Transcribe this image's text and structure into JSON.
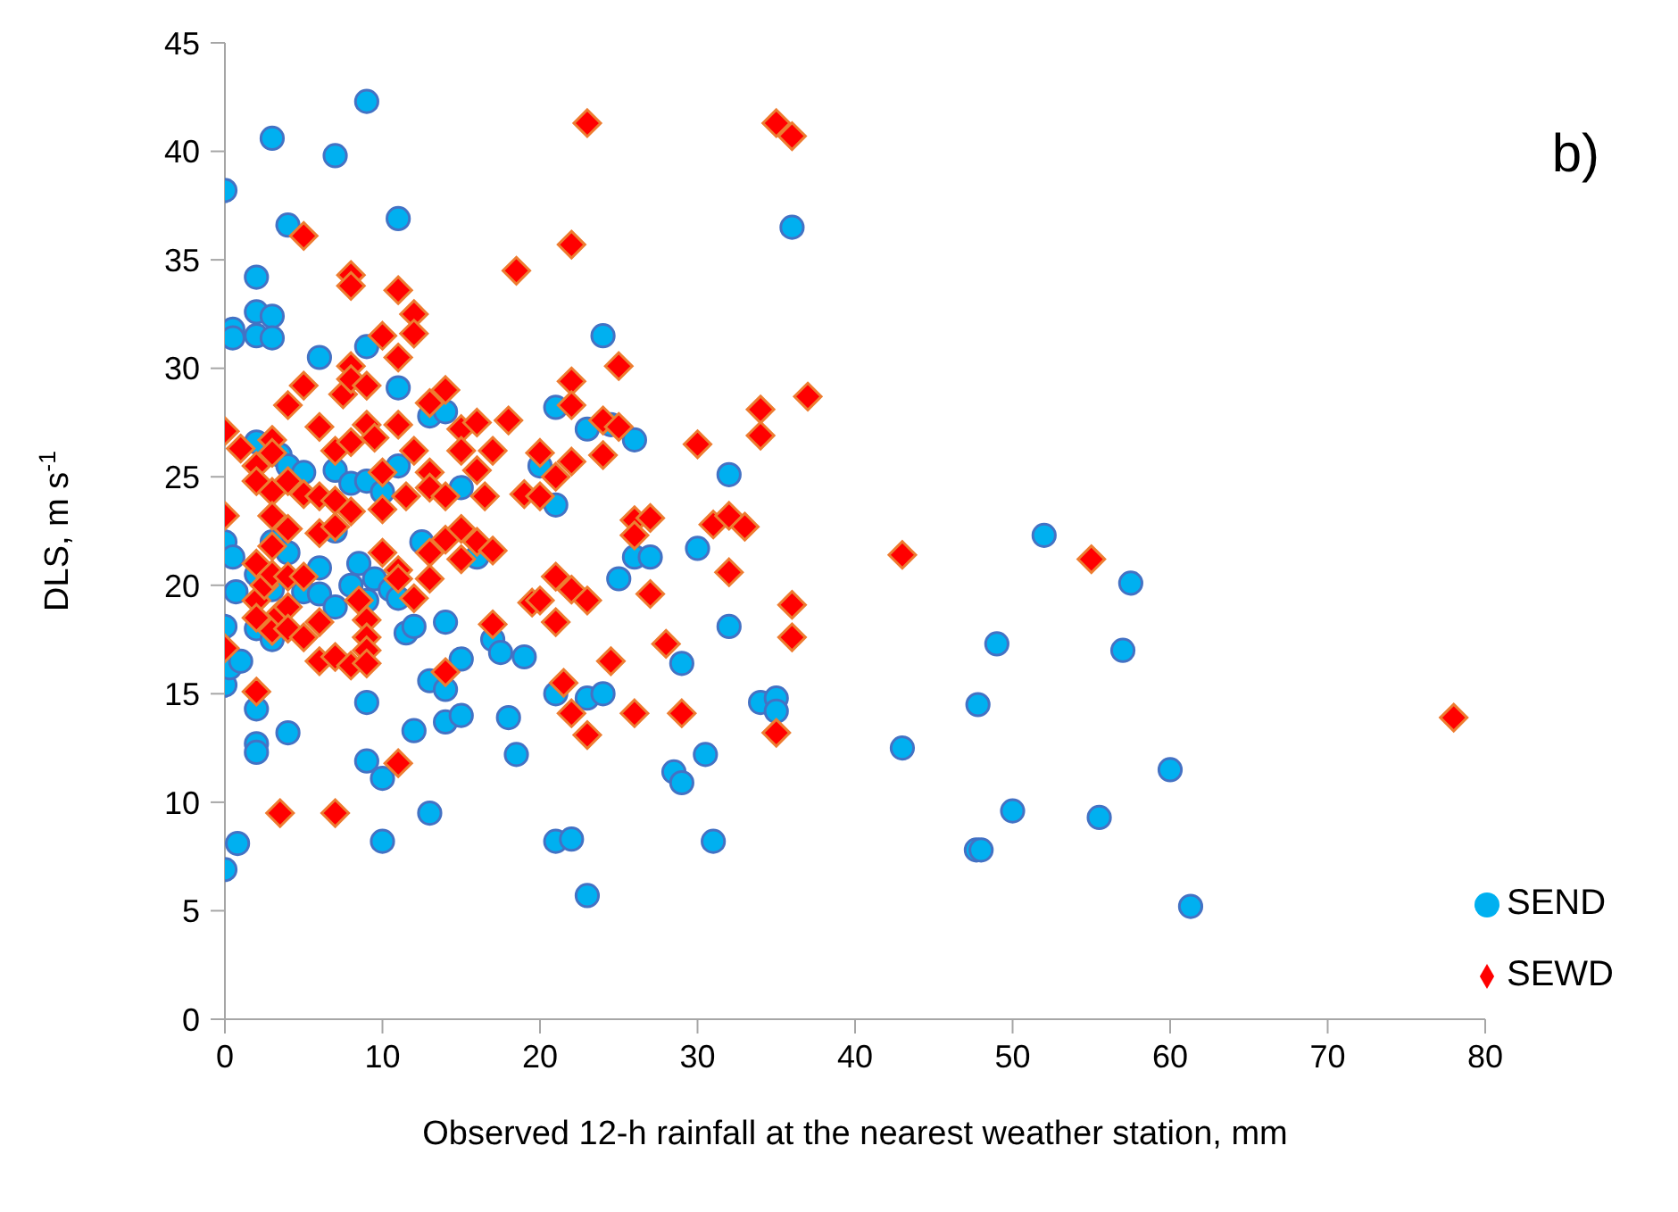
{
  "chart_data": {
    "type": "scatter",
    "xlabel": "Observed 12-h rainfall at the nearest weather station, mm",
    "ylabel": "DLS, m s$^{-1}$",
    "annotations": [
      "b)"
    ],
    "xlim": [
      0,
      80
    ],
    "xticks": [
      0,
      10,
      20,
      30,
      40,
      50,
      60,
      70,
      80
    ],
    "ylim": [
      0,
      45
    ],
    "yticks": [
      0,
      5,
      10,
      15,
      20,
      25,
      30,
      35,
      40,
      45
    ],
    "grid": false,
    "legend": "bottom right",
    "series": [
      {
        "name": "SEND",
        "color": "#00b0f0",
        "marker": "circle",
        "x": [
          0,
          0,
          0,
          0,
          0,
          0.3,
          0.5,
          0.5,
          0.5,
          0.7,
          0.8,
          1,
          2,
          2,
          2,
          2,
          2,
          2,
          2,
          2,
          2,
          3,
          3,
          3,
          3,
          3,
          3,
          3.5,
          4,
          4,
          4,
          4,
          5,
          5,
          6,
          6,
          6,
          7,
          7,
          7,
          7,
          8,
          8,
          8.5,
          9,
          9,
          9,
          9,
          9,
          9,
          9.5,
          10,
          10,
          10,
          10.5,
          11,
          11,
          11,
          11,
          11.5,
          12,
          12,
          12.5,
          13,
          13,
          13,
          14,
          14,
          14,
          14,
          15,
          15,
          15,
          16,
          17,
          17.5,
          18,
          18.5,
          19,
          20,
          21,
          21,
          21,
          21,
          22,
          23,
          23,
          23,
          24,
          24,
          24.5,
          25,
          26,
          26,
          27,
          28.5,
          29,
          29,
          30,
          30.5,
          31,
          32,
          32,
          34,
          35,
          35,
          36,
          43,
          47.7,
          48,
          47.8,
          49,
          50,
          52,
          55.5,
          57,
          57.5,
          60,
          61.3
        ],
        "values": [
          38.2,
          18.1,
          15.4,
          6.9,
          22,
          16.2,
          31.8,
          31.4,
          21.3,
          19.7,
          8.1,
          16.5,
          34.2,
          32.6,
          31.5,
          26.6,
          14.3,
          12.7,
          12.3,
          20.5,
          18,
          40.6,
          32.4,
          31.4,
          22,
          19.8,
          17.5,
          26,
          36.6,
          25.5,
          21.5,
          13.2,
          19.7,
          25.2,
          30.5,
          20.8,
          19.6,
          39.8,
          25.3,
          22.5,
          19,
          24.7,
          20,
          21,
          42.3,
          31,
          19.3,
          14.6,
          11.9,
          24.8,
          20.3,
          11.1,
          8.2,
          24.3,
          19.8,
          36.9,
          29.1,
          25.5,
          19.4,
          17.8,
          18.1,
          13.3,
          22,
          27.8,
          15.6,
          9.5,
          28,
          18.3,
          13.7,
          15.2,
          24.5,
          14,
          16.6,
          21.3,
          17.5,
          16.9,
          13.9,
          12.2,
          16.7,
          25.5,
          28.2,
          23.7,
          15,
          8.2,
          8.3,
          27.2,
          14.8,
          5.7,
          31.5,
          15,
          27.4,
          20.3,
          26.7,
          21.3,
          21.3,
          11.4,
          16.4,
          10.9,
          21.7,
          12.2,
          8.2,
          25.1,
          18.1,
          14.6,
          14.8,
          14.2,
          36.5,
          12.5,
          7.8,
          7.8,
          14.5,
          17.3,
          9.6,
          22.3,
          9.3,
          17,
          20.1,
          11.5,
          5.2
        ]
      },
      {
        "name": "SEWD",
        "color": "#ff0000",
        "marker": "diamond",
        "x": [
          0,
          0,
          0,
          1,
          2,
          2,
          2,
          2,
          2,
          2,
          2.5,
          3,
          3,
          3,
          3,
          3,
          3,
          3,
          3.5,
          3.5,
          4,
          4,
          4,
          4,
          4,
          4,
          5,
          5,
          5,
          5,
          5,
          6,
          6,
          6,
          6,
          6,
          7,
          7,
          7,
          7,
          7,
          7.5,
          8,
          8,
          8,
          8,
          8,
          8,
          8,
          8.5,
          9,
          9,
          9,
          9,
          9,
          9,
          9.5,
          10,
          10,
          10,
          10,
          11,
          11,
          11,
          11,
          11,
          11,
          11.5,
          12,
          12,
          12,
          12,
          13,
          13,
          13,
          13,
          13,
          14,
          14,
          14,
          14,
          15,
          15,
          15,
          15,
          16,
          16,
          16,
          16.5,
          17,
          17,
          17,
          18,
          18.5,
          19,
          19.5,
          20,
          20,
          20,
          21,
          21,
          21,
          21.5,
          22,
          22,
          22,
          22,
          22,
          22,
          23,
          23,
          23,
          24,
          24,
          24.5,
          25,
          25,
          26,
          26,
          26,
          27,
          27,
          28,
          29,
          30,
          31,
          32,
          32,
          33,
          34,
          34,
          35,
          35,
          36,
          36,
          36,
          37,
          43,
          55,
          78
        ],
        "values": [
          27.1,
          23.2,
          17.1,
          26.3,
          25.5,
          21,
          19.3,
          18.5,
          15.1,
          24.8,
          20,
          26.7,
          26.1,
          24.3,
          23.2,
          21.8,
          20.5,
          17.9,
          9.5,
          18.7,
          28.3,
          24.8,
          22.6,
          20.4,
          19,
          18,
          36.1,
          29.2,
          24.2,
          20.4,
          17.6,
          27.3,
          24.1,
          22.4,
          18.3,
          16.5,
          26.2,
          23.9,
          22.7,
          16.7,
          9.5,
          28.8,
          34.3,
          33.8,
          30.1,
          29.5,
          26.6,
          23.4,
          16.3,
          19.3,
          29.2,
          27.4,
          18.4,
          17.6,
          17,
          16.4,
          26.8,
          31.5,
          25.2,
          21.5,
          23.5,
          33.6,
          30.5,
          27.4,
          20.7,
          20.3,
          11.8,
          24.1,
          32.5,
          31.6,
          26.2,
          19.4,
          28.4,
          25.2,
          24.5,
          21.5,
          20.3,
          29,
          24.1,
          22.1,
          16,
          27.2,
          26.2,
          22.6,
          21.2,
          27.5,
          25.3,
          22,
          24.1,
          26.2,
          21.6,
          18.2,
          27.6,
          34.5,
          24.2,
          19.2,
          26.1,
          24.1,
          19.3,
          25,
          20.4,
          18.3,
          15.5,
          35.7,
          29.4,
          28.3,
          25.7,
          19.8,
          14.1,
          41.3,
          19.3,
          13.1,
          27.6,
          26,
          16.5,
          30.1,
          27.3,
          23,
          22.3,
          14.1,
          23.1,
          19.6,
          17.3,
          14.1,
          26.5,
          22.8,
          23.2,
          20.6,
          22.7,
          28.1,
          26.9,
          41.3,
          13.2,
          40.7,
          19.1,
          17.6,
          28.7,
          21.4,
          21.2,
          13.9
        ]
      }
    ]
  }
}
